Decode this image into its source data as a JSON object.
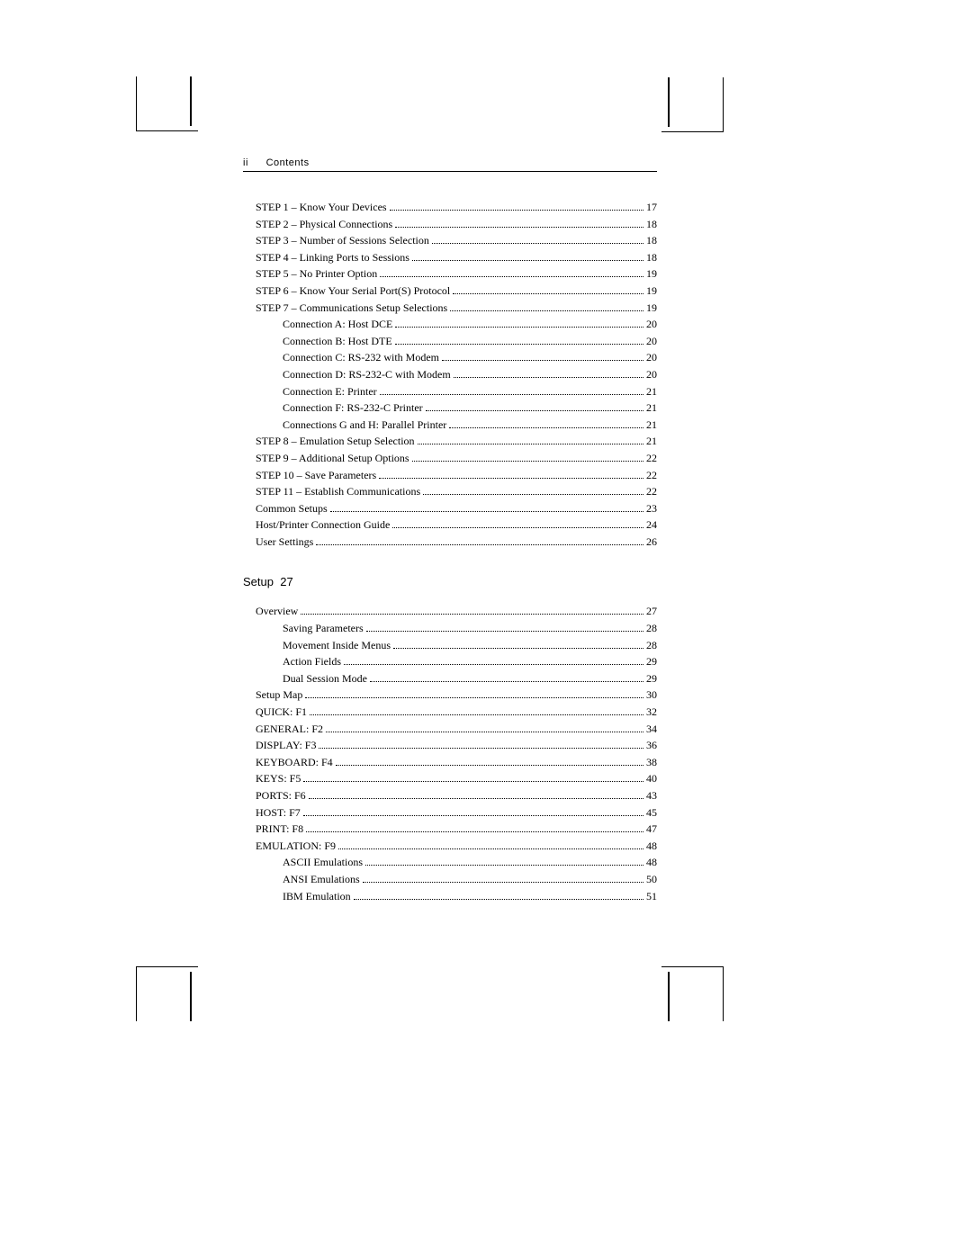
{
  "header": {
    "page_roman": "ii",
    "title": "Contents"
  },
  "block1_indent": 14,
  "block1": [
    {
      "label": "STEP 1 – Know Your Devices",
      "page": "17",
      "indent": 0
    },
    {
      "label": "STEP 2 – Physical Connections",
      "page": "18",
      "indent": 0
    },
    {
      "label": "STEP 3 – Number of Sessions Selection",
      "page": "18",
      "indent": 0
    },
    {
      "label": "STEP 4 – Linking Ports to Sessions",
      "page": "18",
      "indent": 0
    },
    {
      "label": "STEP 5 – No Printer Option",
      "page": "19",
      "indent": 0
    },
    {
      "label": "STEP 6 – Know Your Serial Port(S) Protocol",
      "page": "19",
      "indent": 0
    },
    {
      "label": "STEP 7 – Communications Setup Selections",
      "page": "19",
      "indent": 0
    },
    {
      "label": "Connection A:  Host DCE",
      "page": "20",
      "indent": 1
    },
    {
      "label": "Connection B:  Host DTE",
      "page": "20",
      "indent": 1
    },
    {
      "label": "Connection C:  RS-232 with Modem",
      "page": "20",
      "indent": 1
    },
    {
      "label": "Connection D:  RS-232-C with Modem",
      "page": "20",
      "indent": 1
    },
    {
      "label": "Connection E:  Printer",
      "page": "21",
      "indent": 1
    },
    {
      "label": "Connection F:  RS-232-C Printer",
      "page": "21",
      "indent": 1
    },
    {
      "label": "Connections G and H:  Parallel Printer",
      "page": "21",
      "indent": 1
    },
    {
      "label": "STEP 8 – Emulation Setup Selection",
      "page": "21",
      "indent": 0
    },
    {
      "label": "STEP 9 – Additional Setup Options",
      "page": "22",
      "indent": 0
    },
    {
      "label": "STEP 10 – Save Parameters",
      "page": "22",
      "indent": 0
    },
    {
      "label": "STEP 11 – Establish Communications",
      "page": "22",
      "indent": 0
    },
    {
      "label": "Common Setups",
      "page": "23",
      "indent": 0
    },
    {
      "label": "Host/Printer Connection Guide",
      "page": "24",
      "indent": 0
    },
    {
      "label": "User Settings",
      "page": "26",
      "indent": 0
    }
  ],
  "section2": {
    "title": "Setup",
    "page": "27"
  },
  "block2_indent": 14,
  "block2": [
    {
      "label": "Overview",
      "page": "27",
      "indent": 0
    },
    {
      "label": "Saving Parameters",
      "page": "28",
      "indent": 1
    },
    {
      "label": "Movement Inside Menus",
      "page": "28",
      "indent": 1
    },
    {
      "label": "Action Fields",
      "page": "29",
      "indent": 1
    },
    {
      "label": "Dual Session Mode",
      "page": "29",
      "indent": 1
    },
    {
      "label": "Setup Map",
      "page": "30",
      "indent": 0
    },
    {
      "label": "QUICK: F1",
      "page": "32",
      "indent": 0
    },
    {
      "label": "GENERAL: F2",
      "page": "34",
      "indent": 0
    },
    {
      "label": "DISPLAY: F3",
      "page": "36",
      "indent": 0
    },
    {
      "label": "KEYBOARD: F4",
      "page": "38",
      "indent": 0
    },
    {
      "label": "KEYS: F5",
      "page": "40",
      "indent": 0
    },
    {
      "label": "PORTS: F6",
      "page": "43",
      "indent": 0
    },
    {
      "label": "HOST: F7",
      "page": "45",
      "indent": 0
    },
    {
      "label": "PRINT: F8",
      "page": "47",
      "indent": 0
    },
    {
      "label": "EMULATION: F9",
      "page": "48",
      "indent": 0
    },
    {
      "label": "ASCII Emulations",
      "page": "48",
      "indent": 1
    },
    {
      "label": "ANSI Emulations",
      "page": "50",
      "indent": 1
    },
    {
      "label": "IBM Emulation",
      "page": "51",
      "indent": 1
    }
  ]
}
